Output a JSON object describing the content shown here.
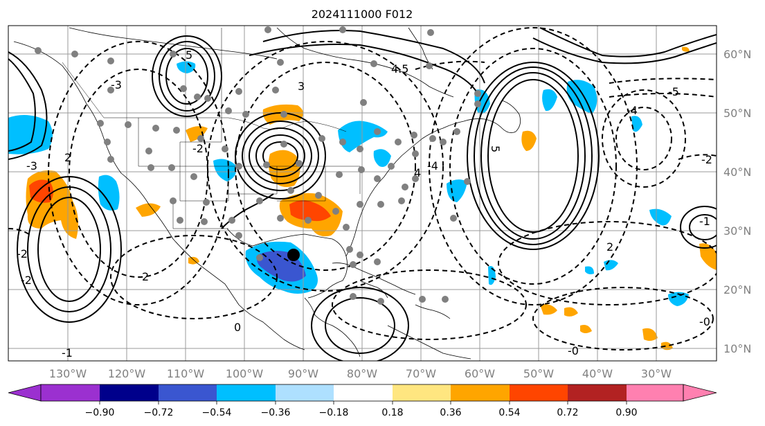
{
  "title": "2024111000 F012",
  "lat_labels": [
    "60°N",
    "50°N",
    "40°N",
    "30°N",
    "20°N",
    "10°N"
  ],
  "lon_labels": [
    "130°W",
    "120°W",
    "110°W",
    "100°W",
    "90°W",
    "80°W",
    "70°W",
    "60°W",
    "50°W",
    "40°W",
    "30°W"
  ],
  "colorbar": {
    "ticks": [
      "−0.90",
      "−0.72",
      "−0.54",
      "−0.36",
      "−0.18",
      "0.18",
      "0.36",
      "0.54",
      "0.72",
      "0.90"
    ],
    "colors": [
      "#9b30d0",
      "#00008b",
      "#3a56d0",
      "#00bfff",
      "#aee0ff",
      "#ffffff",
      "#ffe680",
      "#ffa500",
      "#ff4500",
      "#b22222",
      "#ff80b0"
    ]
  },
  "contour_labels": [
    "5",
    "4.5",
    "4",
    "3",
    "2",
    "2",
    "2",
    "-2",
    "-2",
    "-1",
    "0",
    "-0",
    "-0",
    "-1",
    "5",
    "-3",
    "-4",
    "-5",
    "-3",
    "-4",
    "-2",
    "-2"
  ],
  "colors": {
    "blue_light": "#00bfff",
    "blue_mid": "#3a56d0",
    "orange": "#ffa500",
    "red": "#ff4500",
    "station": "#808080"
  }
}
